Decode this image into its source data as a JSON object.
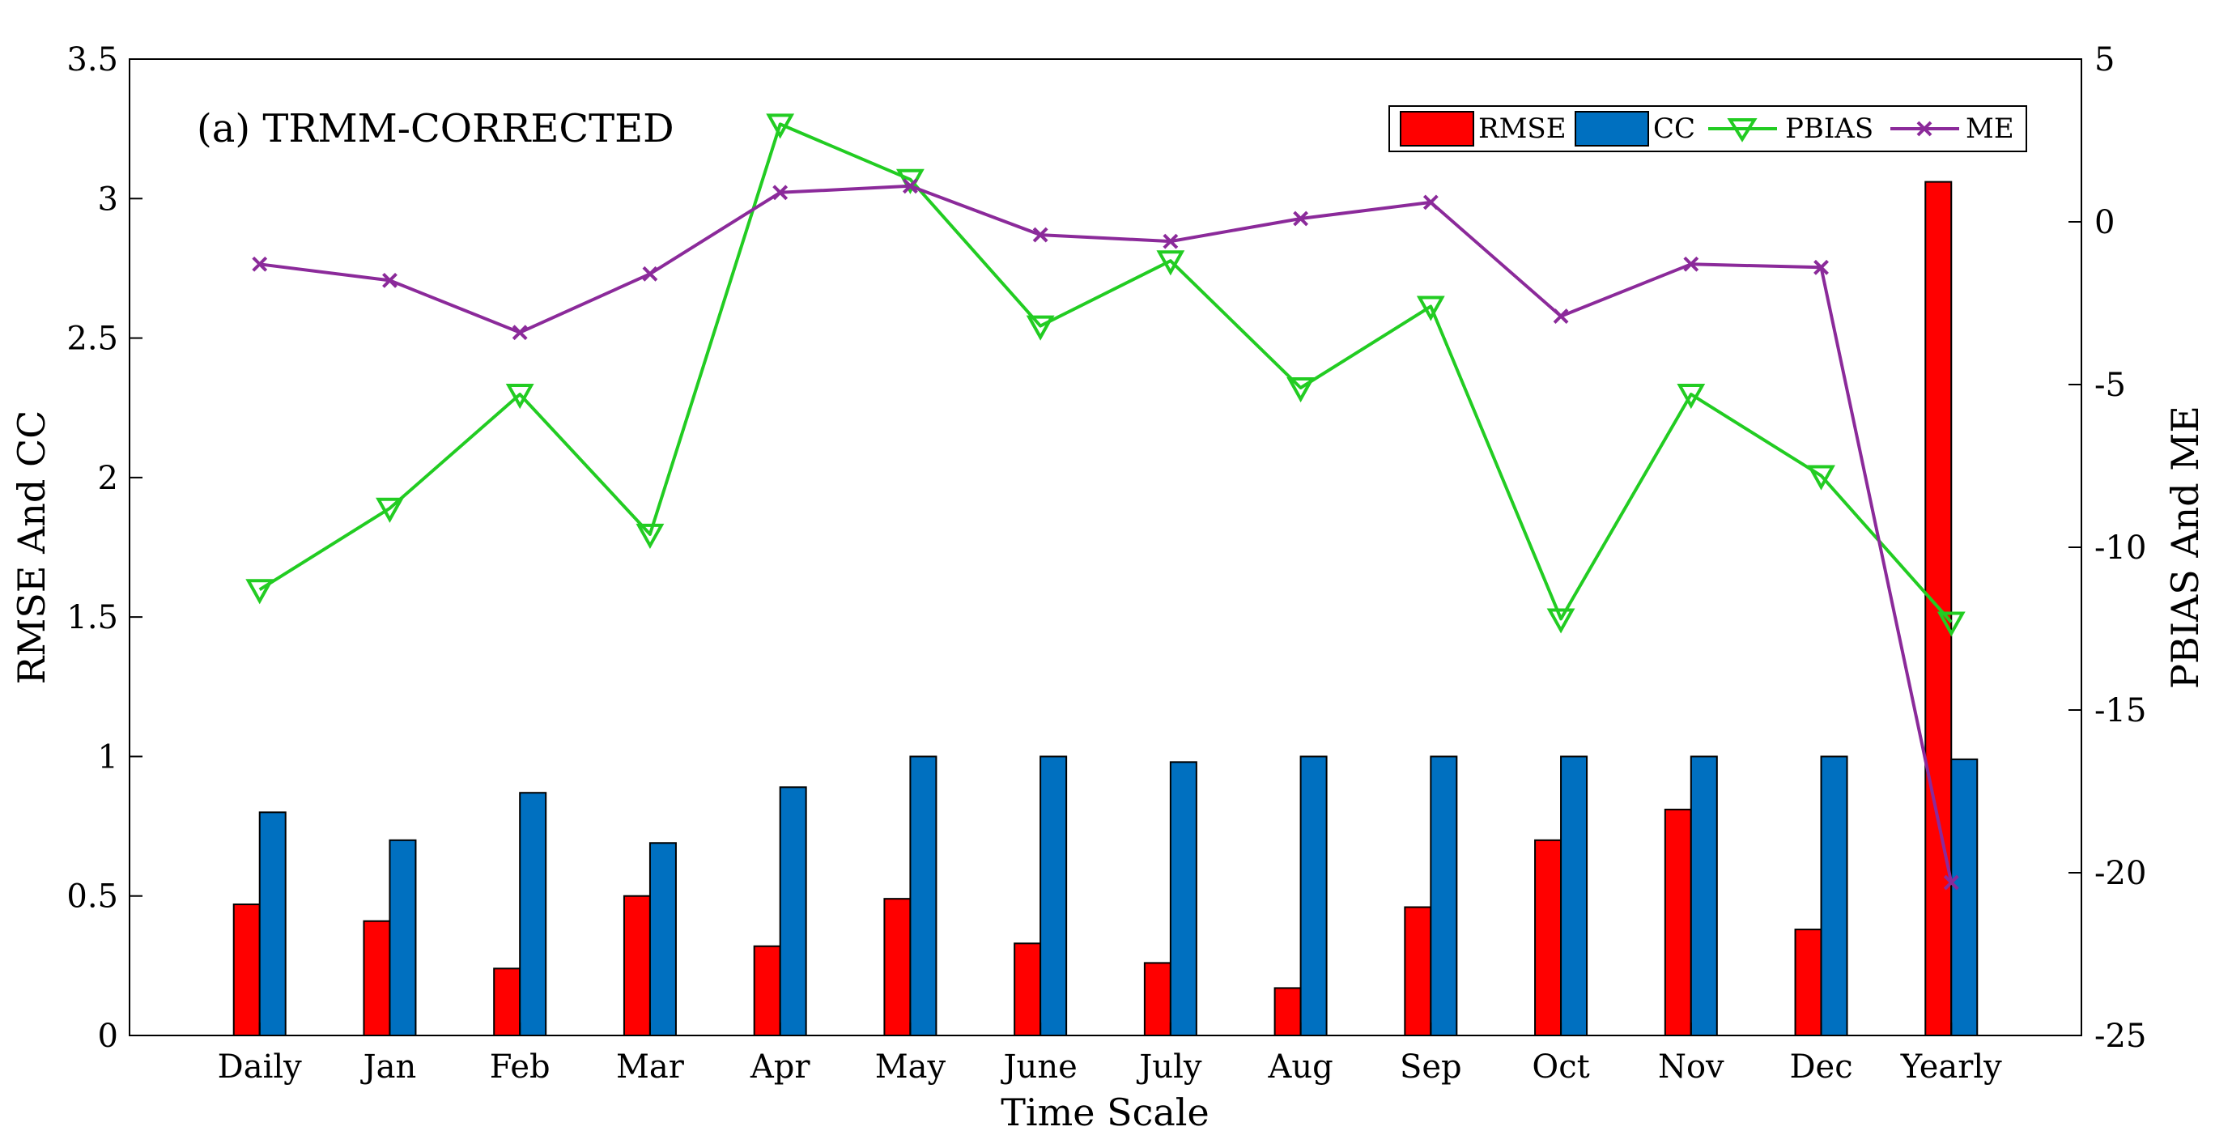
{
  "chart_data": {
    "type": "bar",
    "annotation": "(a) TRMM-CORRECTED",
    "xlabel": "Time Scale",
    "ylabel": "RMSE And CC",
    "y2label": "PBIAS And ME",
    "categories": [
      "Daily",
      "Jan",
      "Feb",
      "Mar",
      "Apr",
      "May",
      "June",
      "July",
      "Aug",
      "Sep",
      "Oct",
      "Nov",
      "Dec",
      "Yearly"
    ],
    "ylim": [
      0,
      3.5
    ],
    "yticks": [
      "0",
      "0.5",
      "1",
      "1.5",
      "2",
      "2.5",
      "3",
      "3.5"
    ],
    "y2lim": [
      -25,
      5
    ],
    "y2ticks": [
      "-25",
      "-20",
      "-15",
      "-10",
      "-5",
      "0",
      "5"
    ],
    "bar_series": [
      {
        "name": "RMSE",
        "axis": "left",
        "color": "#ff0000",
        "values": [
          0.47,
          0.41,
          0.24,
          0.5,
          0.32,
          0.49,
          0.33,
          0.26,
          0.17,
          0.46,
          0.7,
          0.81,
          0.38,
          3.06
        ]
      },
      {
        "name": "CC",
        "axis": "left",
        "color": "#0070c0",
        "values": [
          0.8,
          0.7,
          0.87,
          0.69,
          0.89,
          1.0,
          1.0,
          0.98,
          1.0,
          1.0,
          1.0,
          1.0,
          1.0,
          0.99
        ]
      }
    ],
    "line_series": [
      {
        "name": "PBIAS",
        "axis": "right",
        "color": "#22cc22",
        "marker": "triangle-down",
        "values": [
          -11.3,
          -8.8,
          -5.3,
          -9.6,
          3.0,
          1.3,
          -3.2,
          -1.2,
          -5.1,
          -2.6,
          -12.2,
          -5.3,
          -7.8,
          -12.3
        ]
      },
      {
        "name": "ME",
        "axis": "right",
        "color": "#8b2a9a",
        "marker": "x",
        "values": [
          -1.3,
          -1.8,
          -3.4,
          -1.6,
          0.9,
          1.1,
          -0.4,
          -0.6,
          0.1,
          0.6,
          -2.9,
          -1.3,
          -1.4,
          -20.3
        ]
      }
    ],
    "legend": {
      "placement": "top-right",
      "entries": [
        "RMSE",
        "CC",
        "PBIAS",
        "ME"
      ]
    }
  }
}
